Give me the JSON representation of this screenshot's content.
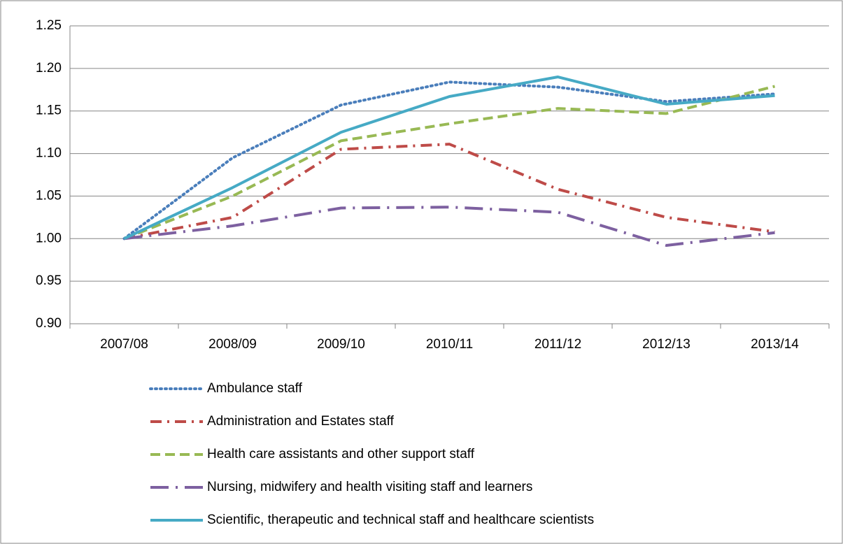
{
  "chart_data": {
    "type": "line",
    "categories": [
      "2007/08",
      "2008/09",
      "2009/10",
      "2010/11",
      "2011/12",
      "2012/13",
      "2013/14"
    ],
    "series": [
      {
        "name": "Ambulance staff",
        "color": "#4a7ebb",
        "linestyle": "dotted",
        "values": [
          1.0,
          1.095,
          1.157,
          1.184,
          1.178,
          1.161,
          1.17
        ]
      },
      {
        "name": "Administration and Estates staff",
        "color": "#be4b48",
        "linestyle": "dashdot",
        "values": [
          1.0,
          1.025,
          1.105,
          1.111,
          1.058,
          1.025,
          1.008
        ]
      },
      {
        "name": "Health care assistants and other support staff",
        "color": "#98b954",
        "linestyle": "dashed",
        "values": [
          1.0,
          1.05,
          1.115,
          1.135,
          1.153,
          1.147,
          1.179
        ]
      },
      {
        "name": "Nursing, midwifery and health visiting staff and learners",
        "color": "#7d60a0",
        "linestyle": "longdashdot",
        "values": [
          1.0,
          1.015,
          1.036,
          1.037,
          1.031,
          0.992,
          1.007
        ]
      },
      {
        "name": "Scientific, therapeutic and technical staff and healthcare scientists",
        "color": "#46aac5",
        "linestyle": "solid",
        "values": [
          1.0,
          1.06,
          1.125,
          1.167,
          1.19,
          1.158,
          1.168
        ]
      }
    ],
    "ylim": [
      0.9,
      1.25
    ],
    "yticks": [
      {
        "value": 0.9,
        "label": "0.90"
      },
      0.95,
      {
        "value": 1.0,
        "label": "1.00"
      },
      1.05,
      {
        "value": 1.1,
        "label": "1.10"
      },
      1.15,
      {
        "value": 1.2,
        "label": "1.20"
      },
      1.25
    ],
    "grid": true,
    "legend": "bottom"
  }
}
